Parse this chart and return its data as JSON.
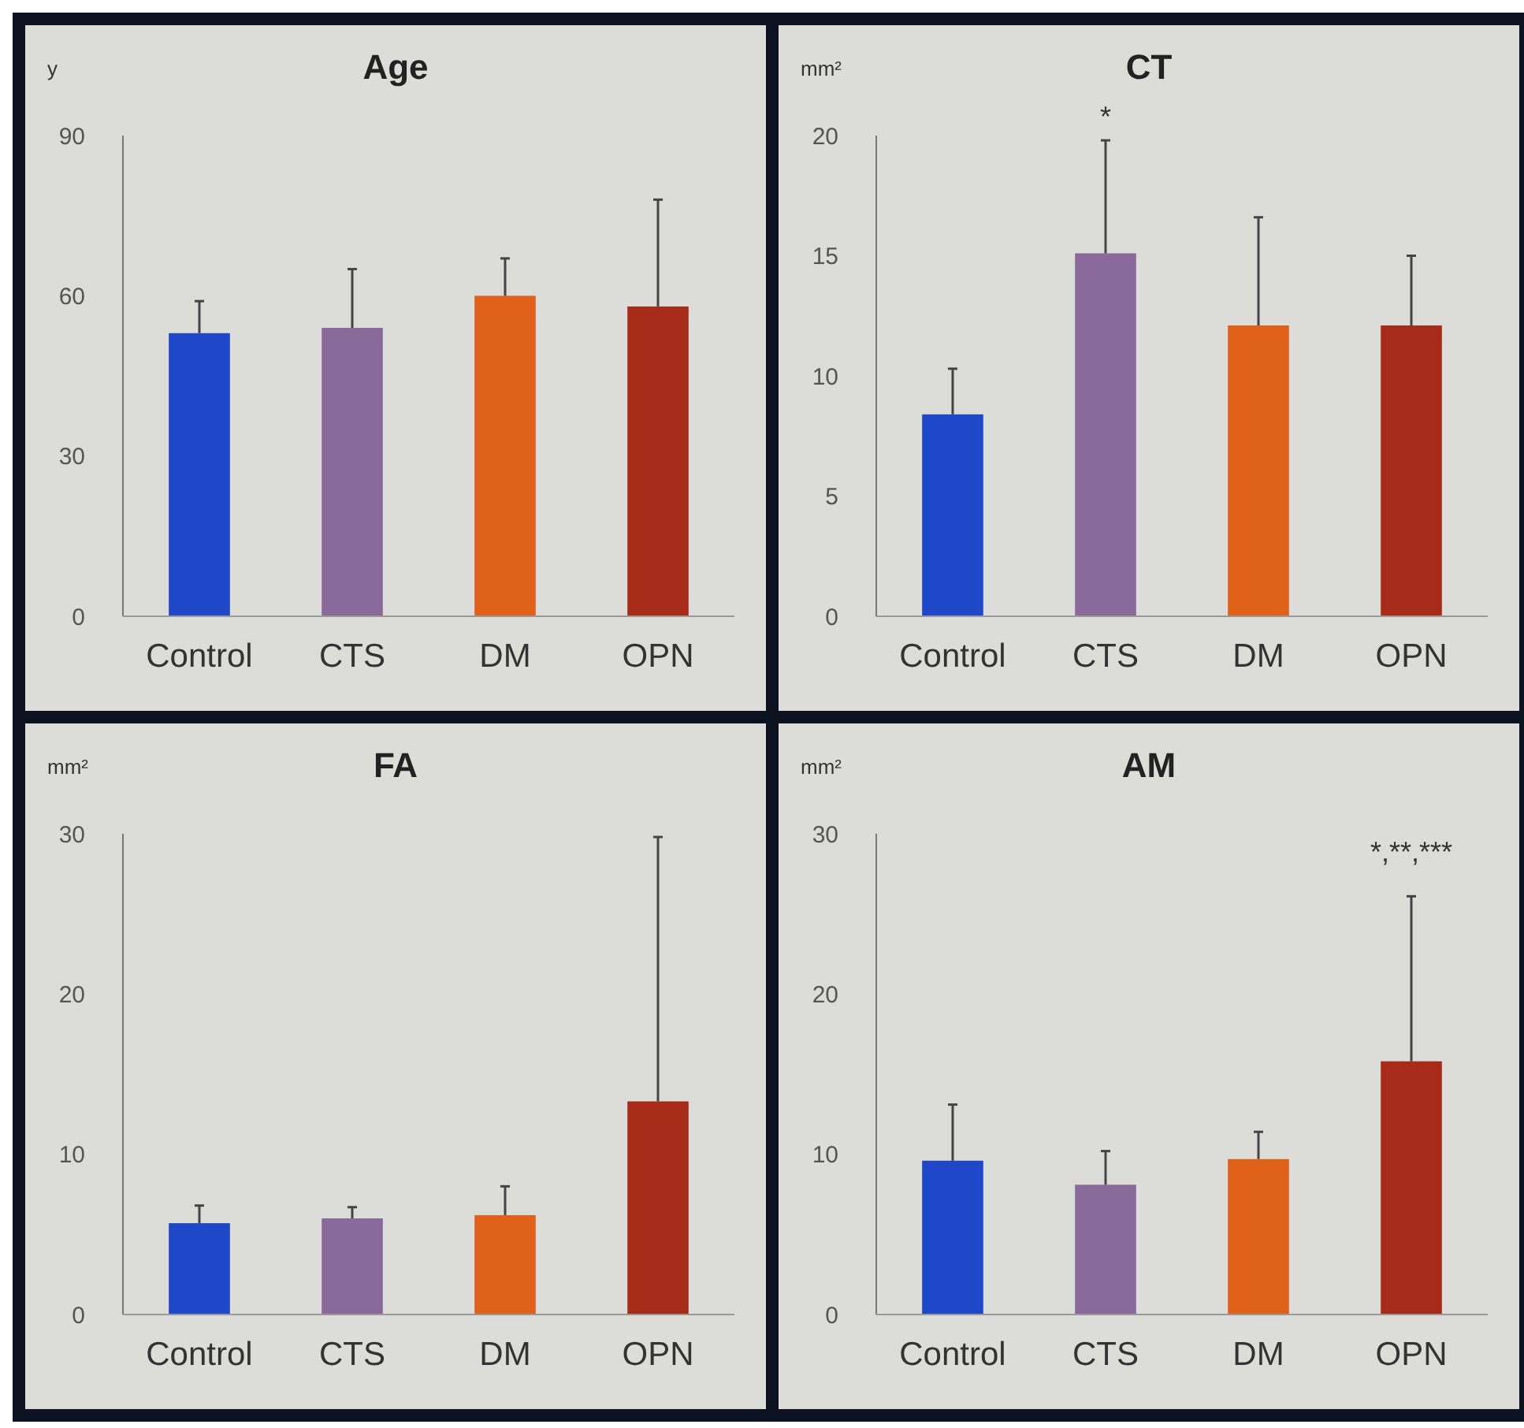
{
  "chart_data": [
    {
      "type": "bar",
      "title": "Age",
      "ylabel": "y",
      "categories": [
        "Control",
        "CTS",
        "DM",
        "OPN"
      ],
      "values": [
        53,
        54,
        60,
        58
      ],
      "colors": [
        "#1f48c8",
        "#8a6a9a",
        "#e0621a",
        "#a82a18"
      ],
      "errors": [
        [
          53,
          59
        ],
        [
          54,
          65
        ],
        [
          60,
          67
        ],
        [
          58,
          78
        ]
      ],
      "ylim": [
        0,
        90
      ],
      "yticks": [
        0,
        30,
        60,
        90
      ],
      "grid": false
    },
    {
      "type": "bar",
      "title": "CT",
      "ylabel": "mm²",
      "categories": [
        "Control",
        "CTS",
        "DM",
        "OPN"
      ],
      "values": [
        8.4,
        15.1,
        12.1,
        12.1
      ],
      "colors": [
        "#1f48c8",
        "#8a6a9a",
        "#e0621a",
        "#a82a18"
      ],
      "errors": [
        [
          8.4,
          10.3
        ],
        [
          15.1,
          19.8
        ],
        [
          12.1,
          16.6
        ],
        [
          12.1,
          15
        ]
      ],
      "ylim": [
        0,
        20
      ],
      "yticks": [
        0,
        5,
        10,
        15,
        20
      ],
      "grid": false,
      "annotations": [
        "*"
      ]
    },
    {
      "type": "bar",
      "title": "FA",
      "ylabel": "mm²",
      "categories": [
        "Control",
        "CTS",
        "DM",
        "OPN"
      ],
      "values": [
        5.7,
        6,
        6.2,
        13.3
      ],
      "colors": [
        "#1f48c8",
        "#8a6a9a",
        "#e0621a",
        "#a82a18"
      ],
      "errors": [
        [
          5.7,
          6.8
        ],
        [
          6,
          6.7
        ],
        [
          6.2,
          8
        ],
        [
          13.3,
          29.8
        ]
      ],
      "ylim": [
        0,
        30
      ],
      "yticks": [
        0,
        10,
        20,
        30
      ],
      "grid": false
    },
    {
      "type": "bar",
      "title": "AM",
      "ylabel": "mm²",
      "categories": [
        "Control",
        "CTS",
        "DM",
        "OPN"
      ],
      "values": [
        9.6,
        8.1,
        9.7,
        15.8
      ],
      "colors": [
        "#1f48c8",
        "#8a6a9a",
        "#e0621a",
        "#a82a18"
      ],
      "errors": [
        [
          9.6,
          13.1
        ],
        [
          8.1,
          10.2
        ],
        [
          9.7,
          11.4
        ],
        [
          15.8,
          26.1
        ]
      ],
      "ylim": [
        0,
        30
      ],
      "yticks": [
        0,
        10,
        20,
        30
      ],
      "grid": false,
      "annotations": [
        "*,**,***"
      ]
    }
  ]
}
